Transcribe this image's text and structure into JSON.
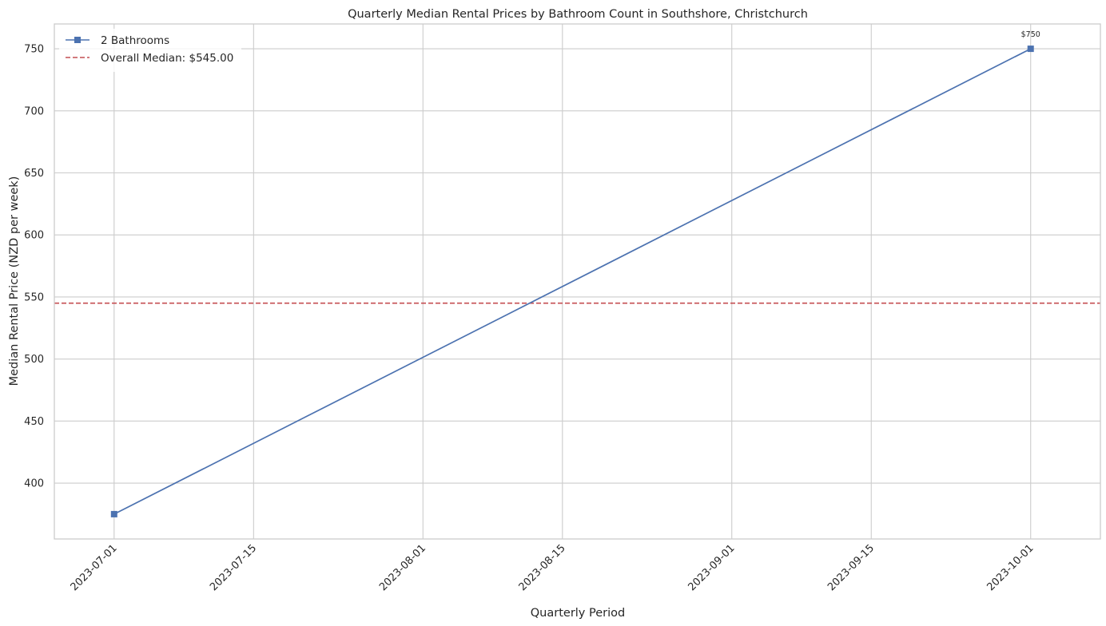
{
  "chart_data": {
    "type": "line",
    "title": "Quarterly Median Rental Prices by Bathroom Count in Southshore, Christchurch",
    "xlabel": "Quarterly Period",
    "ylabel": "Median Rental Price (NZD per week)",
    "x_ticks": [
      "2023-07-01",
      "2023-07-15",
      "2023-08-01",
      "2023-08-15",
      "2023-09-01",
      "2023-09-15",
      "2023-10-01"
    ],
    "y_ticks": [
      400,
      450,
      500,
      550,
      600,
      650,
      700,
      750
    ],
    "xlim": [
      "2023-06-25",
      "2023-10-08"
    ],
    "ylim": [
      355,
      770
    ],
    "grid": true,
    "legend_position": "top-left",
    "series": [
      {
        "name": "2 Bathrooms",
        "color": "#4c72b0",
        "marker": "square",
        "points": [
          {
            "x": "2023-07-01",
            "y": 375
          },
          {
            "x": "2023-10-01",
            "y": 750
          }
        ]
      }
    ],
    "reference_lines": [
      {
        "label": "Overall Median: $545.00",
        "y": 545,
        "color": "#c44e52",
        "style": "dashed"
      }
    ],
    "annotations": [
      {
        "text": "$750",
        "x": "2023-10-01",
        "y": 750
      }
    ]
  }
}
